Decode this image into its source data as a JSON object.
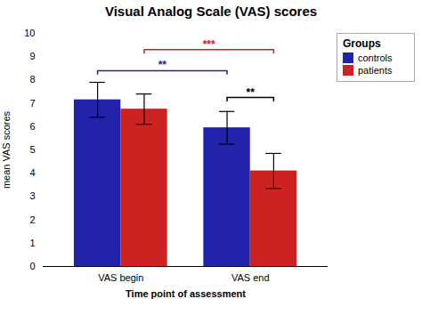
{
  "chart_data": {
    "type": "bar",
    "title": "Visual Analog Scale (VAS) scores",
    "xlabel": "Time point of assessment",
    "ylabel": "mean VAS scores",
    "categories": [
      "VAS begin",
      "VAS end"
    ],
    "series": [
      {
        "name": "controls",
        "color": "#2222aa",
        "values": [
          7.15,
          5.95
        ],
        "errors": [
          0.75,
          0.7
        ]
      },
      {
        "name": "patients",
        "color": "#cc2222",
        "values": [
          6.75,
          4.1
        ],
        "errors": [
          0.65,
          0.75
        ]
      }
    ],
    "ylim": [
      0,
      10
    ],
    "yticks": [
      0,
      1,
      2,
      3,
      4,
      5,
      6,
      7,
      8,
      9,
      10
    ],
    "grid": false,
    "legend": "right",
    "legend_title": "Groups",
    "annotations": [
      {
        "text": "**",
        "color": "#2222aa",
        "y": 8.4,
        "from": {
          "category": "VAS begin",
          "series": "controls"
        },
        "to": {
          "category": "VAS end",
          "series": "controls"
        }
      },
      {
        "text": "***",
        "color": "#cc2222",
        "y": 9.3,
        "from": {
          "category": "VAS begin",
          "series": "patients"
        },
        "to": {
          "category": "VAS end",
          "series": "patients"
        }
      },
      {
        "text": "**",
        "color": "#000000",
        "y": 7.25,
        "from": {
          "category": "VAS end",
          "series": "controls"
        },
        "to": {
          "category": "VAS end",
          "series": "patients"
        }
      }
    ]
  }
}
